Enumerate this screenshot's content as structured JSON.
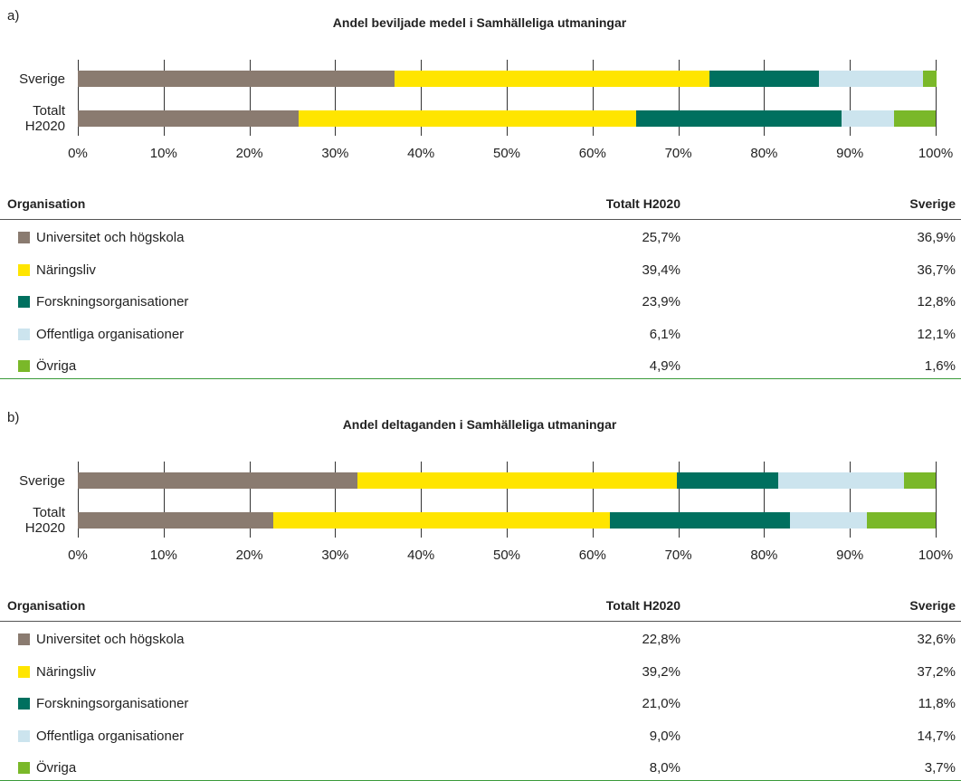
{
  "chart_data": [
    {
      "type": "stacked-barh",
      "panel": "a)",
      "title": "Andel beviljade medel i Samhälleliga utmaningar",
      "categories": [
        "Sverige",
        "Totalt H2020"
      ],
      "xlim": [
        0,
        100
      ],
      "xticks": [
        {
          "value": 0,
          "label": "0%"
        },
        {
          "value": 10,
          "label": "10%"
        },
        {
          "value": 20,
          "label": "20%"
        },
        {
          "value": 30,
          "label": "30%"
        },
        {
          "value": 40,
          "label": "40%"
        },
        {
          "value": 50,
          "label": "50%"
        },
        {
          "value": 60,
          "label": "60%"
        },
        {
          "value": 70,
          "label": "70%"
        },
        {
          "value": 80,
          "label": "80%"
        },
        {
          "value": 90,
          "label": "90%"
        },
        {
          "value": 100,
          "label": "100%"
        }
      ],
      "table_header": "Organisation",
      "series": [
        {
          "name": "Universitet och högskola",
          "color": "#8a7b70",
          "values": [
            36.9,
            25.7
          ],
          "value_labels": [
            "36,9%",
            "25,7%"
          ]
        },
        {
          "name": "Näringsliv",
          "color": "#ffe500",
          "values": [
            36.7,
            39.4
          ],
          "value_labels": [
            "36,7%",
            "39,4%"
          ]
        },
        {
          "name": "Forskningsorganisationer",
          "color": "#00705f",
          "values": [
            12.8,
            23.9
          ],
          "value_labels": [
            "12,8%",
            "23,9%"
          ]
        },
        {
          "name": "Offentliga organisationer",
          "color": "#cce4ee",
          "values": [
            12.1,
            6.1
          ],
          "value_labels": [
            "12,1%",
            "6,1%"
          ]
        },
        {
          "name": "Övriga",
          "color": "#7ab829",
          "values": [
            1.6,
            4.9
          ],
          "value_labels": [
            "1,6%",
            "4,9%"
          ]
        }
      ]
    },
    {
      "type": "stacked-barh",
      "panel": "b)",
      "title": "Andel deltaganden i Samhälleliga utmaningar",
      "categories": [
        "Sverige",
        "Totalt H2020"
      ],
      "xlim": [
        0,
        100
      ],
      "xticks": [
        {
          "value": 0,
          "label": "0%"
        },
        {
          "value": 10,
          "label": "10%"
        },
        {
          "value": 20,
          "label": "20%"
        },
        {
          "value": 30,
          "label": "30%"
        },
        {
          "value": 40,
          "label": "40%"
        },
        {
          "value": 50,
          "label": "50%"
        },
        {
          "value": 60,
          "label": "60%"
        },
        {
          "value": 70,
          "label": "70%"
        },
        {
          "value": 80,
          "label": "80%"
        },
        {
          "value": 90,
          "label": "90%"
        },
        {
          "value": 100,
          "label": "100%"
        }
      ],
      "table_header": "Organisation",
      "series": [
        {
          "name": "Universitet och högskola",
          "color": "#8a7b70",
          "values": [
            32.6,
            22.8
          ],
          "value_labels": [
            "32,6%",
            "22,8%"
          ]
        },
        {
          "name": "Näringsliv",
          "color": "#ffe500",
          "values": [
            37.2,
            39.2
          ],
          "value_labels": [
            "37,2%",
            "39,2%"
          ]
        },
        {
          "name": "Forskningsorganisationer",
          "color": "#00705f",
          "values": [
            11.8,
            21.0
          ],
          "value_labels": [
            "11,8%",
            "21,0%"
          ]
        },
        {
          "name": "Offentliga organisationer",
          "color": "#cce4ee",
          "values": [
            14.7,
            9.0
          ],
          "value_labels": [
            "14,7%",
            "9,0%"
          ]
        },
        {
          "name": "Övriga",
          "color": "#7ab829",
          "values": [
            3.7,
            8.0
          ],
          "value_labels": [
            "3,7%",
            "8,0%"
          ]
        }
      ]
    }
  ]
}
